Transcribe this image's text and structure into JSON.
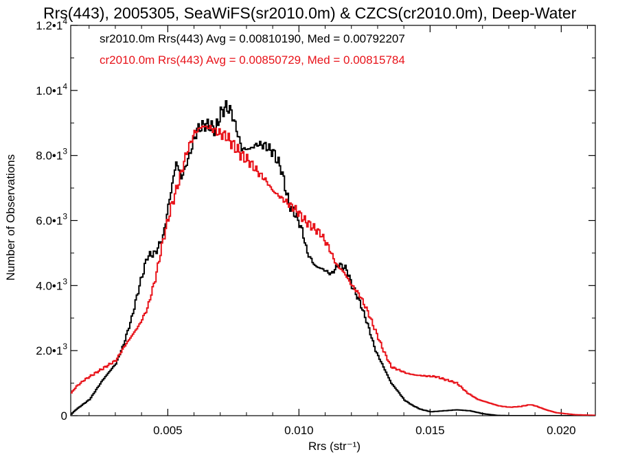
{
  "chart_data": {
    "type": "line",
    "title": "Rrs(443), 2005305, SeaWiFS(sr2010.0m) & CZCS(cr2010.0m), Deep-Water",
    "xlabel": "Rrs (str⁻¹)",
    "ylabel": "Number of Observations",
    "xlim": [
      0.0013,
      0.0213
    ],
    "ylim": [
      0,
      12000
    ],
    "x_ticks": [
      0.005,
      0.01,
      0.015,
      0.02
    ],
    "x_tick_labels": [
      "0.005",
      "0.010",
      "0.015",
      "0.020"
    ],
    "y_ticks": [
      0,
      2000,
      4000,
      6000,
      8000,
      10000,
      12000
    ],
    "y_tick_labels": [
      {
        "mant": "0",
        "exp": ""
      },
      {
        "mant": "2.0•1",
        "exp": "3"
      },
      {
        "mant": "4.0•1",
        "exp": "3"
      },
      {
        "mant": "6.0•1",
        "exp": "3"
      },
      {
        "mant": "8.0•1",
        "exp": "3"
      },
      {
        "mant": "1.0•1",
        "exp": "4"
      },
      {
        "mant": "1.2•1",
        "exp": "4"
      }
    ],
    "grid": false,
    "legend_position": "top-left",
    "series": [
      {
        "name": "sr2010.0m Rrs(443) Avg = 0.00810190, Med = 0.00792207",
        "color": "#000000",
        "step": true,
        "x": [
          0.0013,
          0.0015,
          0.002,
          0.0025,
          0.003,
          0.0033,
          0.0036,
          0.0039,
          0.0042,
          0.0045,
          0.0048,
          0.0051,
          0.0053,
          0.0055,
          0.0058,
          0.0061,
          0.0064,
          0.0066,
          0.0068,
          0.007,
          0.0072,
          0.0074,
          0.0076,
          0.0078,
          0.0081,
          0.0084,
          0.0087,
          0.009,
          0.0093,
          0.0096,
          0.0099,
          0.0101,
          0.0103,
          0.0106,
          0.0109,
          0.0112,
          0.0115,
          0.0118,
          0.012,
          0.0123,
          0.0126,
          0.0129,
          0.0132,
          0.0135,
          0.0138,
          0.014,
          0.0143,
          0.0146,
          0.015,
          0.0155,
          0.016,
          0.0165,
          0.017,
          0.0175,
          0.018,
          0.019,
          0.0213
        ],
        "y": [
          50,
          200,
          500,
          1100,
          1600,
          2200,
          3000,
          4000,
          4900,
          5000,
          5500,
          6900,
          7800,
          7300,
          8000,
          8800,
          8950,
          8900,
          8800,
          9300,
          9500,
          9350,
          8800,
          8200,
          8200,
          8350,
          8300,
          8100,
          7600,
          6500,
          6100,
          5700,
          5000,
          4600,
          4500,
          4350,
          4650,
          4500,
          4000,
          3500,
          2800,
          2000,
          1500,
          1000,
          700,
          480,
          320,
          200,
          120,
          150,
          180,
          150,
          60,
          10,
          0,
          0,
          0
        ]
      },
      {
        "name": "cr2010.0m Rrs(443) Avg = 0.00850729, Med = 0.00815784",
        "color": "#e8131a",
        "step": true,
        "x": [
          0.0013,
          0.0015,
          0.0018,
          0.0021,
          0.0024,
          0.0027,
          0.003,
          0.0033,
          0.0036,
          0.0039,
          0.0042,
          0.0045,
          0.0048,
          0.0051,
          0.0054,
          0.0057,
          0.006,
          0.0063,
          0.0066,
          0.0069,
          0.0072,
          0.0075,
          0.0078,
          0.0081,
          0.0084,
          0.0087,
          0.009,
          0.0093,
          0.0096,
          0.0099,
          0.0102,
          0.0105,
          0.0108,
          0.0111,
          0.0114,
          0.0117,
          0.012,
          0.0123,
          0.0126,
          0.0129,
          0.0132,
          0.0135,
          0.0138,
          0.0141,
          0.0144,
          0.0148,
          0.0152,
          0.0156,
          0.016,
          0.0164,
          0.0168,
          0.0172,
          0.0176,
          0.018,
          0.0184,
          0.0188,
          0.019,
          0.0194,
          0.0198,
          0.0205,
          0.0213
        ],
        "y": [
          700,
          900,
          1100,
          1250,
          1400,
          1550,
          1700,
          2100,
          2450,
          2800,
          3300,
          4200,
          5400,
          6400,
          7200,
          8100,
          8700,
          8900,
          8850,
          8700,
          8600,
          8300,
          8000,
          7800,
          7500,
          7250,
          6900,
          6700,
          6500,
          6300,
          6000,
          5800,
          5600,
          5200,
          4650,
          4400,
          4000,
          3700,
          3200,
          2600,
          2000,
          1500,
          1400,
          1300,
          1250,
          1220,
          1200,
          1100,
          1000,
          700,
          500,
          400,
          300,
          260,
          280,
          340,
          300,
          180,
          90,
          30,
          10
        ]
      }
    ]
  }
}
